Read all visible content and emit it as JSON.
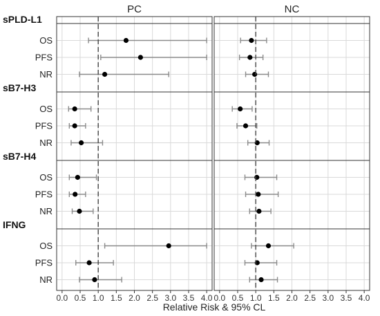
{
  "chart_data": {
    "type": "forest",
    "xlabel": "Relative Risk & 95% CL",
    "xlim": [
      -0.15,
      4.15
    ],
    "xticks": [
      "0.0",
      "0.5",
      "1.0",
      "1.5",
      "2.0",
      "2.5",
      "3.0",
      "3.5",
      "4.0"
    ],
    "reference_line": 1.0,
    "panels": [
      "PC",
      "NC"
    ],
    "groups": [
      {
        "name": "sPLD-L1",
        "rows": [
          {
            "label": "OS",
            "PC": {
              "est": 1.77,
              "lo": 0.73,
              "hi": 4.0
            },
            "NC": {
              "est": 0.88,
              "lo": 0.58,
              "hi": 1.3
            }
          },
          {
            "label": "PFS",
            "PC": {
              "est": 2.17,
              "lo": 1.07,
              "hi": 4.0
            },
            "NC": {
              "est": 0.84,
              "lo": 0.55,
              "hi": 1.2
            }
          },
          {
            "label": "NR",
            "PC": {
              "est": 1.18,
              "lo": 0.48,
              "hi": 2.95
            },
            "NC": {
              "est": 0.97,
              "lo": 0.72,
              "hi": 1.35
            }
          }
        ]
      },
      {
        "name": "sB7-H3",
        "rows": [
          {
            "label": "OS",
            "PC": {
              "est": 0.35,
              "lo": 0.18,
              "hi": 0.8
            },
            "NC": {
              "est": 0.57,
              "lo": 0.35,
              "hi": 0.9
            }
          },
          {
            "label": "PFS",
            "PC": {
              "est": 0.35,
              "lo": 0.2,
              "hi": 0.65
            },
            "NC": {
              "est": 0.72,
              "lo": 0.48,
              "hi": 1.03
            }
          },
          {
            "label": "NR",
            "PC": {
              "est": 0.53,
              "lo": 0.25,
              "hi": 1.12
            },
            "NC": {
              "est": 1.04,
              "lo": 0.78,
              "hi": 1.37
            }
          }
        ]
      },
      {
        "name": "sB7-H4",
        "rows": [
          {
            "label": "OS",
            "PC": {
              "est": 0.43,
              "lo": 0.2,
              "hi": 0.95
            },
            "NC": {
              "est": 1.03,
              "lo": 0.7,
              "hi": 1.58
            }
          },
          {
            "label": "PFS",
            "PC": {
              "est": 0.36,
              "lo": 0.2,
              "hi": 0.65
            },
            "NC": {
              "est": 1.07,
              "lo": 0.72,
              "hi": 1.62
            }
          },
          {
            "label": "NR",
            "PC": {
              "est": 0.48,
              "lo": 0.28,
              "hi": 0.86
            },
            "NC": {
              "est": 1.09,
              "lo": 0.83,
              "hi": 1.42
            }
          }
        ]
      },
      {
        "name": "IFNG",
        "rows": [
          {
            "label": "OS",
            "PC": {
              "est": 2.95,
              "lo": 1.18,
              "hi": 4.0
            },
            "NC": {
              "est": 1.35,
              "lo": 0.88,
              "hi": 2.05
            }
          },
          {
            "label": "PFS",
            "PC": {
              "est": 0.75,
              "lo": 0.38,
              "hi": 1.42
            },
            "NC": {
              "est": 1.04,
              "lo": 0.7,
              "hi": 1.58
            }
          },
          {
            "label": "NR",
            "PC": {
              "est": 0.9,
              "lo": 0.48,
              "hi": 1.65
            },
            "NC": {
              "est": 1.15,
              "lo": 0.83,
              "hi": 1.6
            }
          }
        ]
      }
    ]
  }
}
